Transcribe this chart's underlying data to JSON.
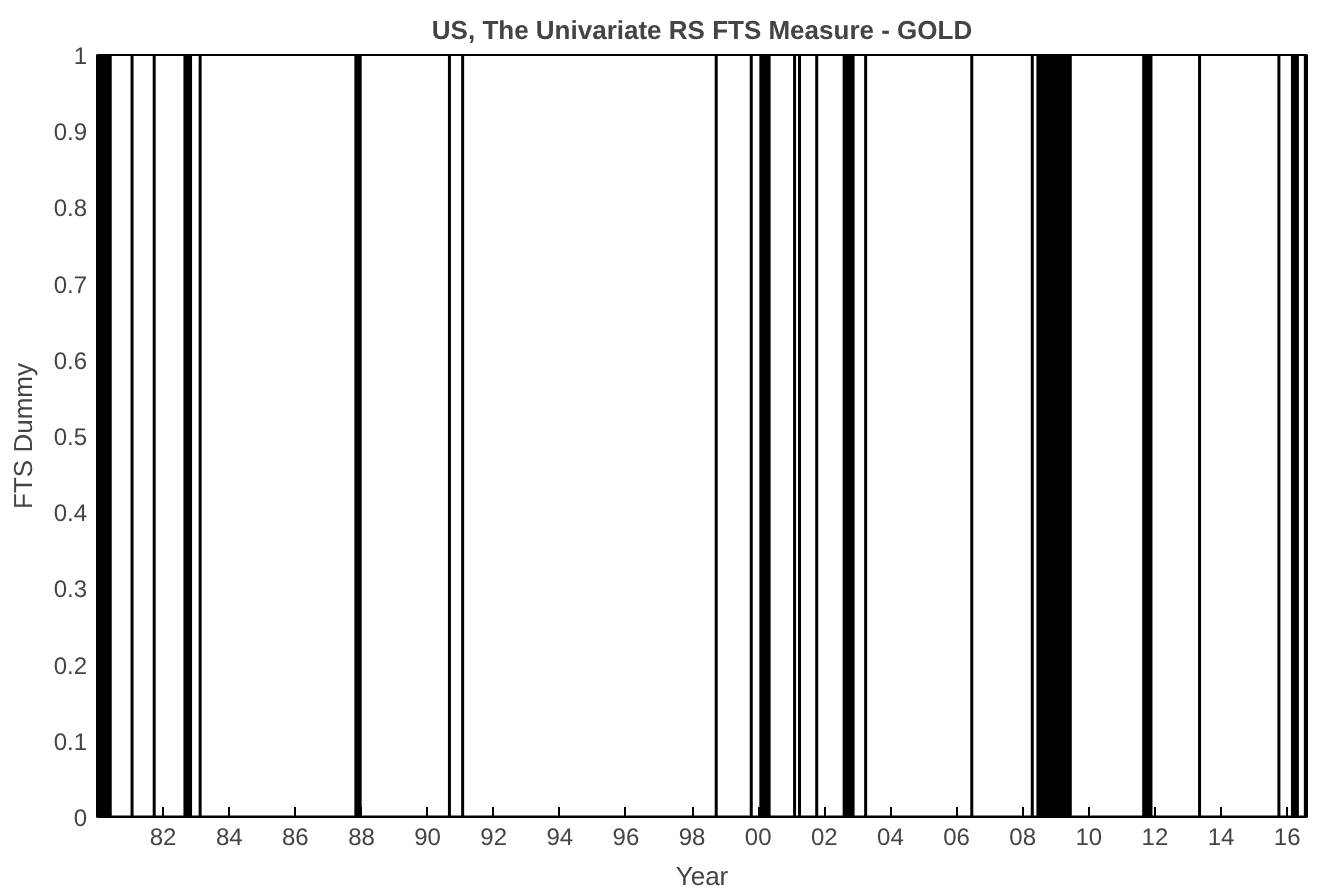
{
  "chart_data": {
    "type": "area",
    "title": "US, The Univariate RS FTS Measure - GOLD",
    "xlabel": "Year",
    "ylabel": "FTS Dummy",
    "series": [
      {
        "color": "#000000",
        "x": [
          1980.0,
          1980.0,
          1980.4,
          1980.4,
          1981.06,
          1981.06,
          1981.06,
          1981.73,
          1981.73,
          1981.73,
          1982.66,
          1982.66,
          1982.83,
          1982.83,
          1983.12,
          1983.12,
          1983.12,
          1987.83,
          1987.83,
          1987.96,
          1987.96,
          1990.66,
          1990.66,
          1990.66,
          1991.06,
          1991.06,
          1991.06,
          1998.73,
          1998.73,
          1998.73,
          1999.79,
          1999.79,
          1999.79,
          2000.08,
          2000.08,
          2000.33,
          2000.33,
          2001.1,
          2001.1,
          2001.1,
          2001.25,
          2001.25,
          2001.25,
          2001.77,
          2001.77,
          2001.77,
          2002.6,
          2002.6,
          2002.87,
          2002.87,
          2003.25,
          2003.25,
          2003.25,
          2006.46,
          2006.46,
          2006.46,
          2008.29,
          2008.29,
          2008.29,
          2008.46,
          2008.46,
          2009.44,
          2009.44,
          2011.66,
          2011.66,
          2011.88,
          2011.88,
          2013.35,
          2013.35,
          2013.35,
          2015.75,
          2015.75,
          2015.75,
          2016.16,
          2016.16,
          2016.31,
          2016.31,
          2016.55,
          2016.55,
          2016.55,
          2016.6
        ],
        "values": [
          1,
          1,
          1,
          0,
          0,
          1,
          0,
          0,
          1,
          0,
          0,
          1,
          1,
          0,
          0,
          1,
          0,
          0,
          1,
          1,
          0,
          0,
          1,
          0,
          0,
          1,
          0,
          0,
          1,
          0,
          0,
          1,
          0,
          0,
          1,
          1,
          0,
          0,
          1,
          0,
          0,
          1,
          0,
          0,
          1,
          0,
          0,
          1,
          1,
          0,
          0,
          1,
          0,
          0,
          1,
          0,
          0,
          1,
          0,
          0,
          1,
          1,
          0,
          0,
          1,
          1,
          0,
          0,
          1,
          0,
          0,
          1,
          0,
          0,
          1,
          1,
          0,
          0,
          1,
          0,
          0
        ]
      }
    ],
    "xlim": [
      1980.0,
      2016.6
    ],
    "xticks": [
      {
        "value": 1982,
        "label": "82"
      },
      {
        "value": 1984,
        "label": "84"
      },
      {
        "value": 1986,
        "label": "86"
      },
      {
        "value": 1988,
        "label": "88"
      },
      {
        "value": 1990,
        "label": "90"
      },
      {
        "value": 1992,
        "label": "92"
      },
      {
        "value": 1994,
        "label": "94"
      },
      {
        "value": 1996,
        "label": "96"
      },
      {
        "value": 1998,
        "label": "98"
      },
      {
        "value": 2000,
        "label": "00"
      },
      {
        "value": 2002,
        "label": "02"
      },
      {
        "value": 2004,
        "label": "04"
      },
      {
        "value": 2006,
        "label": "06"
      },
      {
        "value": 2008,
        "label": "08"
      },
      {
        "value": 2010,
        "label": "10"
      },
      {
        "value": 2012,
        "label": "12"
      },
      {
        "value": 2014,
        "label": "14"
      },
      {
        "value": 2016,
        "label": "16"
      }
    ],
    "ylim": [
      0,
      1
    ],
    "yticks": [
      0,
      0.1,
      0.2,
      0.3,
      0.4,
      0.5,
      0.6,
      0.7,
      0.8,
      0.9,
      1
    ],
    "grid": false
  }
}
